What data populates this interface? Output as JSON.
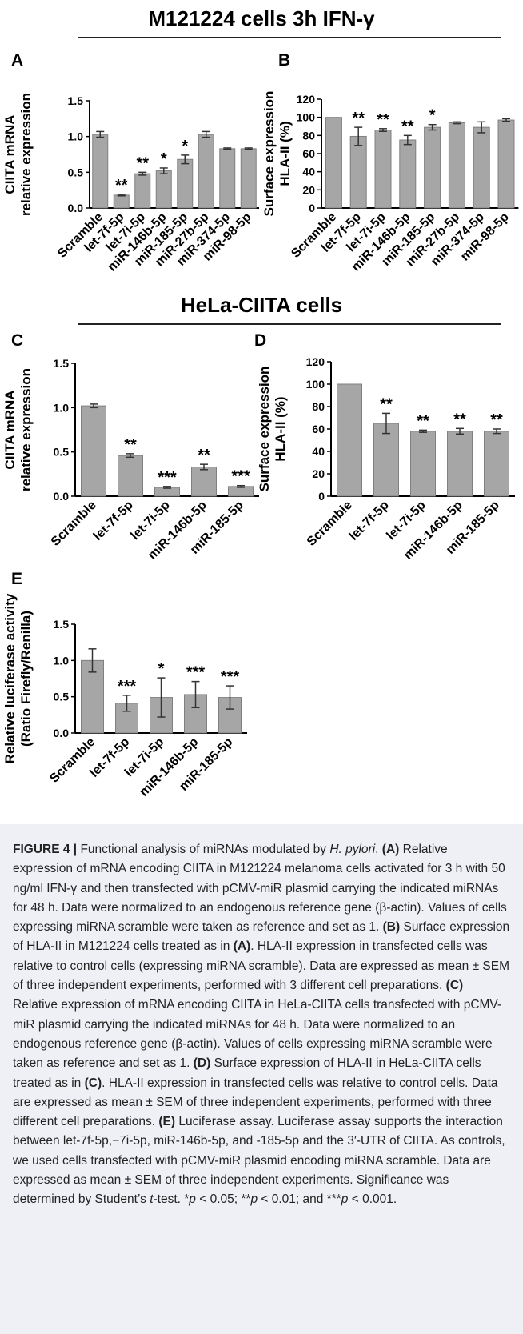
{
  "header": {
    "title_top": "M121224 cells 3h IFN-γ",
    "title_mid": "HeLa-CIITA cells"
  },
  "panels": {
    "A": "A",
    "B": "B",
    "C": "C",
    "D": "D",
    "E": "E"
  },
  "colors": {
    "bar_fill": "#a6a6a6",
    "bar_stroke": "#808080",
    "axis": "#000000",
    "caption_bg": "#eef0f6"
  },
  "chart_data": [
    {
      "id": "A",
      "type": "bar",
      "title": "",
      "ylabel": [
        "CIITA mRNA",
        "relative expression"
      ],
      "xlabel": "",
      "categories": [
        "Scramble",
        "let-7f-5p",
        "let-7i-5p",
        "miR-146b-5p",
        "miR-185-5p",
        "miR-27b-5p",
        "miR-374-5p",
        "miR-98-5p"
      ],
      "values": [
        1.03,
        0.18,
        0.48,
        0.52,
        0.68,
        1.03,
        0.83,
        0.83
      ],
      "errors": [
        0.04,
        0.01,
        0.02,
        0.04,
        0.06,
        0.04,
        0.01,
        0.01
      ],
      "significance": [
        "",
        "**",
        "**",
        "*",
        "*",
        "",
        "",
        ""
      ],
      "ylim": [
        0,
        1.5
      ],
      "yticks": [
        "0.0",
        "0.5",
        "1.0",
        "1.5"
      ],
      "grid": false
    },
    {
      "id": "B",
      "type": "bar",
      "title": "",
      "ylabel": [
        "Surface expression",
        "HLA-II (%)"
      ],
      "xlabel": "",
      "categories": [
        "Scramble",
        "let-7f-5p",
        "let-7i-5p",
        "miR-146b-5p",
        "miR-185-5p",
        "miR-27b-5p",
        "miR-374-5p",
        "miR-98-5p"
      ],
      "values": [
        100,
        79,
        86,
        75,
        89,
        94,
        89,
        97
      ],
      "errors": [
        0,
        10,
        1.5,
        5,
        3,
        1,
        6,
        1.5
      ],
      "significance": [
        "",
        "**",
        "**",
        "**",
        "*",
        "",
        "",
        ""
      ],
      "ylim": [
        0,
        120
      ],
      "yticks": [
        "0",
        "20",
        "40",
        "60",
        "80",
        "100",
        "120"
      ],
      "grid": false
    },
    {
      "id": "C",
      "type": "bar",
      "title": "",
      "ylabel": [
        "CIITA mRNA",
        "relative expression"
      ],
      "xlabel": "",
      "categories": [
        "Scramble",
        "let-7f-5p",
        "let-7i-5p",
        "miR-146b-5p",
        "miR-185-5p"
      ],
      "values": [
        1.02,
        0.46,
        0.1,
        0.33,
        0.11
      ],
      "errors": [
        0.02,
        0.02,
        0.01,
        0.03,
        0.01
      ],
      "significance": [
        "",
        "**",
        "***",
        "**",
        "***"
      ],
      "ylim": [
        0,
        1.5
      ],
      "yticks": [
        "0.0",
        "0.5",
        "1.0",
        "1.5"
      ],
      "grid": false
    },
    {
      "id": "D",
      "type": "bar",
      "title": "",
      "ylabel": [
        "Surface expression",
        "HLA-II (%)"
      ],
      "xlabel": "",
      "categories": [
        "Scramble",
        "let-7f-5p",
        "let-7i-5p",
        "miR-146b-5p",
        "miR-185-5p"
      ],
      "values": [
        100,
        65,
        58,
        58,
        58
      ],
      "errors": [
        0,
        9,
        1,
        2.5,
        2
      ],
      "significance": [
        "",
        "**",
        "**",
        "**",
        "**"
      ],
      "ylim": [
        0,
        120
      ],
      "yticks": [
        "0",
        "20",
        "40",
        "60",
        "80",
        "100",
        "120"
      ],
      "grid": false
    },
    {
      "id": "E",
      "type": "bar",
      "title": "",
      "ylabel": [
        "Relative luciferase activity",
        "(Ratio Firefly/Renilla)"
      ],
      "xlabel": "",
      "categories": [
        "Scramble",
        "let-7f-5p",
        "let-7i-5p",
        "miR-146b-5p",
        "miR-185-5p"
      ],
      "values": [
        1.0,
        0.41,
        0.49,
        0.53,
        0.49
      ],
      "errors": [
        0.16,
        0.11,
        0.27,
        0.18,
        0.16
      ],
      "significance": [
        "",
        "***",
        "*",
        "***",
        "***"
      ],
      "ylim": [
        0,
        1.5
      ],
      "yticks": [
        "0.0",
        "0.5",
        "1.0",
        "1.5"
      ],
      "grid": false
    }
  ],
  "caption": {
    "lead": "FIGURE 4 |",
    "p01": " Functional analysis of miRNAs modulated by ",
    "p02": "H. pylori",
    "p03": ". ",
    "p04": "(A)",
    "p05": " Relative expression of mRNA encoding CIITA in M121224 melanoma cells activated for 3 h with 50 ng/ml IFN-γ and then transfected with pCMV-miR plasmid carrying the indicated miRNAs for 48 h. Data were normalized to an endogenous reference gene (β-actin). Values of cells expressing miRNA scramble were taken as reference and set as 1. ",
    "p06": "(B)",
    "p07": " Surface expression of HLA-II in M121224 cells treated as in ",
    "p08": "(A)",
    "p09": ". HLA-II expression in transfected cells was relative to control cells (expressing miRNA scramble). Data are expressed as mean ± SEM of three independent experiments, performed with 3 different cell preparations. ",
    "p10": "(C)",
    "p11": " Relative expression of mRNA encoding CIITA in HeLa-CIITA cells transfected with pCMV-miR plasmid carrying the indicated miRNAs for 48 h. Data were normalized to an endogenous reference gene (β-actin). Values of cells expressing miRNA scramble were taken as reference and set as 1. ",
    "p12": "(D)",
    "p13": " Surface expression of HLA-II in HeLa-CIITA cells treated as in ",
    "p14": "(C)",
    "p15": ". HLA-II expression in transfected cells was relative to control cells. Data are expressed as mean ± SEM of three independent experiments, performed with three different cell preparations. ",
    "p16": "(E)",
    "p17": " Luciferase assay. Luciferase assay supports the interaction between let-7f-5p,−7i-5p, miR-146b-5p, and -185-5p and the 3′-UTR of CIITA. As controls, we used cells transfected with pCMV-miR plasmid encoding miRNA scramble. Data are expressed as mean ± SEM of three independent experiments. Significance was determined by Student’s ",
    "p18": "t",
    "p19": "-test. *",
    "p20": "p",
    "p21": " < 0.05; **",
    "p22": "p",
    "p23": " < 0.01; and ***",
    "p24": "p",
    "p25": " < 0.001."
  }
}
